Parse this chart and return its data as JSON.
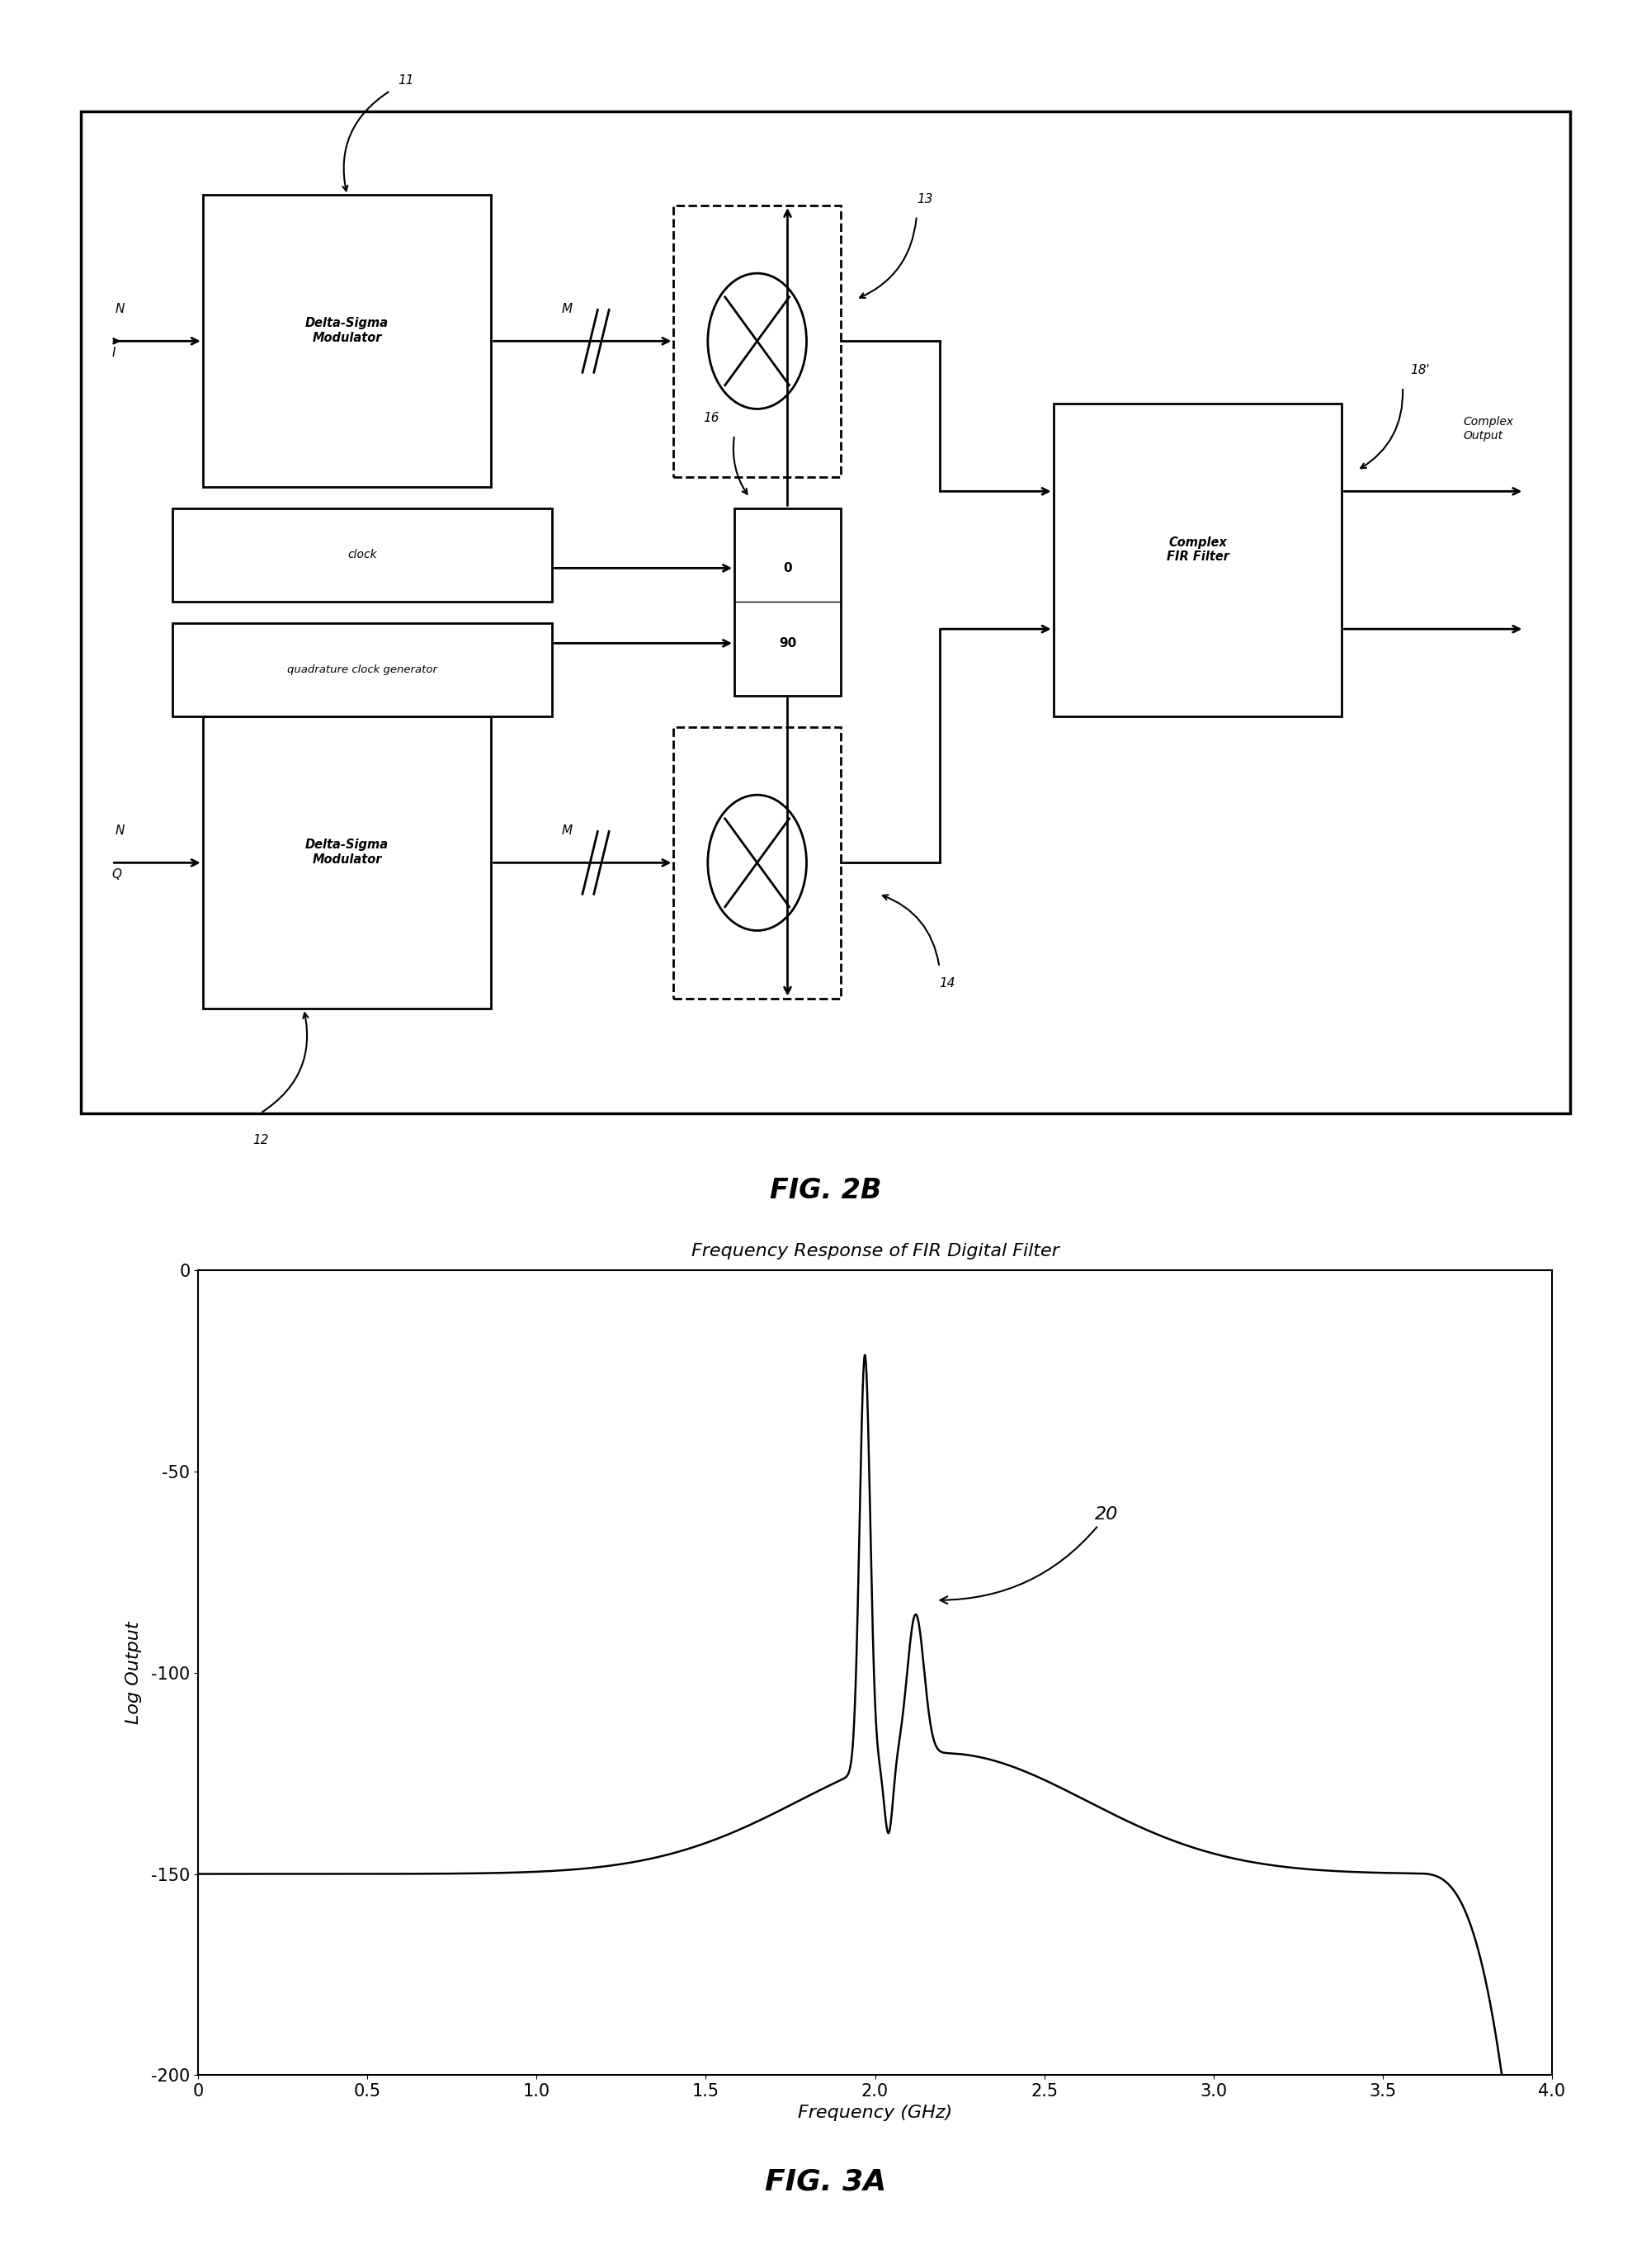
{
  "fig_width": 20.01,
  "fig_height": 27.48,
  "bg_color": "#ffffff",
  "diagram_title": "FIG. 2B",
  "plot_title": "Frequency Response of FIR Digital Filter",
  "xlabel": "Frequency (GHz)",
  "ylabel": "Log Output",
  "xlim": [
    0,
    4.0
  ],
  "ylim": [
    -200,
    0
  ],
  "xticks": [
    0,
    0.5,
    1.0,
    1.5,
    2.0,
    2.5,
    3.0,
    3.5,
    4.0
  ],
  "yticks": [
    0,
    -50,
    -100,
    -150,
    -200
  ],
  "xtick_labels": [
    "0",
    "0.5",
    "1.0",
    "1.5",
    "2.0",
    "2.5",
    "3.0",
    "3.5",
    "4.0"
  ],
  "ytick_labels": [
    "0",
    "-50",
    "-100",
    "-150",
    "-200"
  ],
  "fig3a_title": "FIG. 3A"
}
